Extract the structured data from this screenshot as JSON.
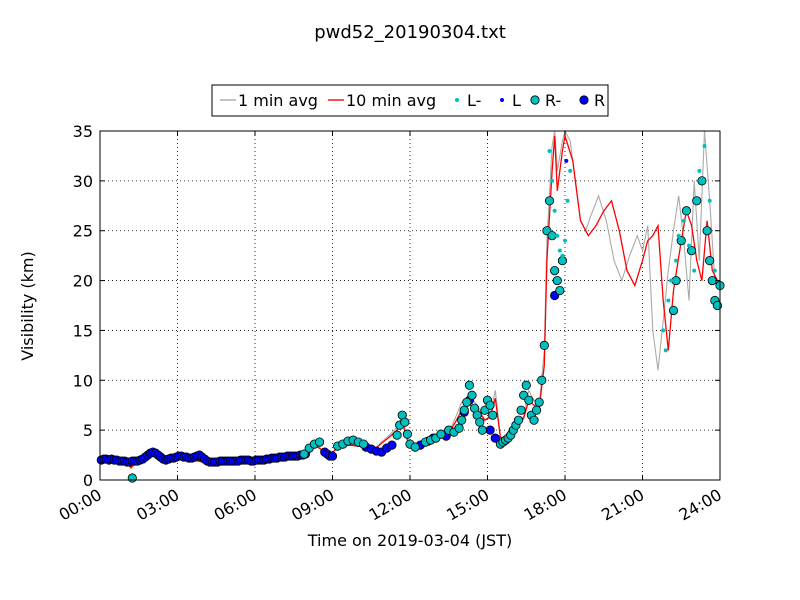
{
  "chart_data": {
    "type": "line",
    "title": "pwd52_20190304.txt",
    "xlabel": "Time on 2019-03-04 (JST)",
    "ylabel": "Visibility (km)",
    "xlim_hours": [
      0,
      24
    ],
    "ylim": [
      0,
      35
    ],
    "x_ticks": [
      {
        "hour": 0,
        "label": "00:00"
      },
      {
        "hour": 3,
        "label": "03:00"
      },
      {
        "hour": 6,
        "label": "06:00"
      },
      {
        "hour": 9,
        "label": "09:00"
      },
      {
        "hour": 12,
        "label": "12:00"
      },
      {
        "hour": 15,
        "label": "15:00"
      },
      {
        "hour": 18,
        "label": "18:00"
      },
      {
        "hour": 21,
        "label": "21:00"
      },
      {
        "hour": 24,
        "label": "24:00"
      }
    ],
    "y_ticks": [
      0,
      5,
      10,
      15,
      20,
      25,
      30,
      35
    ],
    "grid": true,
    "legend_position": "top-center, above the plot",
    "legend": [
      {
        "label": "1 min avg",
        "kind": "line",
        "color": "#aaaaaa"
      },
      {
        "label": "10 min avg",
        "kind": "line",
        "color": "#ff0000"
      },
      {
        "label": "L-",
        "kind": "small-dot",
        "color": "#00bfbf"
      },
      {
        "label": "L",
        "kind": "small-dot",
        "color": "#0000ff"
      },
      {
        "label": "R-",
        "kind": "big-dot",
        "color": "#00bfbf"
      },
      {
        "label": "R",
        "kind": "big-dot",
        "color": "#0000ff"
      }
    ],
    "series": [
      {
        "name": "1 min avg",
        "color": "#aaaaaa",
        "x_hours": [
          0,
          0.5,
          1.0,
          1.3,
          1.5,
          1.7,
          2.0,
          2.3,
          2.6,
          3.0,
          3.3,
          3.6,
          4.0,
          4.5,
          5.0,
          5.5,
          6.0,
          6.5,
          7.0,
          7.5,
          8.0,
          8.3,
          8.6,
          8.9,
          9.2,
          9.6,
          10.0,
          10.3,
          10.6,
          10.9,
          11.2,
          11.5,
          11.7,
          11.9,
          12.1,
          12.4,
          12.7,
          13.0,
          13.3,
          13.6,
          13.8,
          14.0,
          14.3,
          14.6,
          14.9,
          15.1,
          15.3,
          15.5,
          15.8,
          16.1,
          16.4,
          16.6,
          16.8,
          17.0,
          17.2,
          17.3,
          17.5,
          17.6,
          17.7,
          17.9,
          18.0,
          18.2,
          18.4,
          18.6,
          18.8,
          19.0,
          19.3,
          19.6,
          19.9,
          20.2,
          20.5,
          20.8,
          21.0,
          21.2,
          21.4,
          21.6,
          21.8,
          22.0,
          22.2,
          22.4,
          22.6,
          22.8,
          23.0,
          23.2,
          23.4,
          23.6,
          23.8,
          24.0
        ],
        "values": [
          2.0,
          2.1,
          1.9,
          1.8,
          2.0,
          2.2,
          2.7,
          2.3,
          2.2,
          2.3,
          2.4,
          2.0,
          1.8,
          1.9,
          1.9,
          2.0,
          2.0,
          2.2,
          2.3,
          2.4,
          3.1,
          3.8,
          3.0,
          2.5,
          3.3,
          3.5,
          3.4,
          3.3,
          3.0,
          3.8,
          4.5,
          5.3,
          6.4,
          4.2,
          3.3,
          3.8,
          4.0,
          4.5,
          5.0,
          5.3,
          6.5,
          7.8,
          8.5,
          7.5,
          6.0,
          6.5,
          9.0,
          4.2,
          3.8,
          5.0,
          6.5,
          9.0,
          8.0,
          7.5,
          13.0,
          24.0,
          33.5,
          35.0,
          31.0,
          34.0,
          35.0,
          34.0,
          30.0,
          26.0,
          25.0,
          26.5,
          28.5,
          26.0,
          22.0,
          20.0,
          22.5,
          24.5,
          23.0,
          25.5,
          15.0,
          11.0,
          16.0,
          21.0,
          25.0,
          28.5,
          24.0,
          18.0,
          30.0,
          22.0,
          35.0,
          28.0,
          20.0,
          19.0
        ]
      },
      {
        "name": "10 min avg",
        "color": "#ff0000",
        "x_hours": [
          0,
          0.5,
          1.0,
          1.2,
          1.4,
          1.6,
          2.0,
          2.3,
          2.6,
          3.0,
          3.3,
          3.6,
          4.0,
          4.5,
          5.0,
          5.5,
          6.0,
          6.5,
          7.0,
          7.5,
          8.0,
          8.3,
          8.6,
          8.9,
          9.2,
          9.6,
          10.0,
          10.3,
          10.6,
          10.9,
          11.2,
          11.5,
          11.7,
          11.9,
          12.1,
          12.4,
          12.7,
          13.0,
          13.3,
          13.6,
          13.8,
          14.0,
          14.3,
          14.6,
          14.9,
          15.1,
          15.3,
          15.5,
          15.8,
          16.1,
          16.4,
          16.6,
          16.8,
          17.0,
          17.2,
          17.3,
          17.5,
          17.6,
          17.7,
          17.9,
          18.0,
          18.3,
          18.6,
          18.9,
          19.2,
          19.5,
          19.8,
          20.1,
          20.4,
          20.7,
          21.0,
          21.2,
          21.4,
          21.6,
          21.8,
          22.0,
          22.2,
          22.5,
          22.7,
          22.9,
          23.1,
          23.3,
          23.5,
          23.7,
          24.0
        ],
        "values": [
          2.0,
          2.0,
          1.9,
          1.2,
          1.8,
          2.0,
          2.6,
          2.3,
          2.2,
          2.3,
          2.3,
          2.0,
          1.8,
          1.9,
          1.9,
          2.0,
          2.0,
          2.2,
          2.3,
          2.4,
          3.0,
          3.5,
          3.0,
          2.6,
          3.2,
          3.5,
          3.4,
          3.3,
          3.0,
          3.7,
          4.3,
          5.0,
          5.8,
          4.0,
          3.4,
          3.8,
          4.0,
          4.4,
          4.8,
          5.1,
          6.0,
          7.0,
          7.6,
          7.0,
          6.0,
          6.3,
          8.2,
          4.3,
          4.0,
          5.0,
          6.2,
          8.0,
          7.5,
          7.2,
          11.5,
          22.0,
          31.0,
          34.5,
          29.0,
          33.0,
          34.5,
          32.0,
          26.0,
          24.5,
          25.5,
          27.0,
          28.0,
          25.0,
          21.0,
          19.5,
          22.0,
          24.0,
          24.5,
          25.5,
          18.0,
          13.0,
          19.0,
          24.0,
          27.0,
          25.5,
          22.0,
          20.0,
          26.0,
          21.0,
          19.5
        ]
      },
      {
        "name": "R",
        "color": "#0000ff",
        "marker": "big-dot",
        "x_hours": [
          0.05,
          0.15,
          0.25,
          0.35,
          0.45,
          0.55,
          0.65,
          0.75,
          0.85,
          0.95,
          1.05,
          1.15,
          1.25,
          1.35,
          1.45,
          1.55,
          1.65,
          1.75,
          1.85,
          1.95,
          2.05,
          2.15,
          2.25,
          2.35,
          2.45,
          2.55,
          2.65,
          2.75,
          2.85,
          2.95,
          3.05,
          3.15,
          3.25,
          3.35,
          3.45,
          3.55,
          3.65,
          3.75,
          3.85,
          3.95,
          4.05,
          4.15,
          4.25,
          4.35,
          4.45,
          4.55,
          4.65,
          4.75,
          4.85,
          4.95,
          5.05,
          5.15,
          5.25,
          5.35,
          5.45,
          5.55,
          5.65,
          5.75,
          5.85,
          5.95,
          6.05,
          6.15,
          6.25,
          6.35,
          6.45,
          6.55,
          6.65,
          6.75,
          6.85,
          6.95,
          7.05,
          7.15,
          7.25,
          7.35,
          7.45,
          7.55,
          7.65,
          7.75,
          7.85,
          7.95,
          8.7,
          8.8,
          8.9,
          9.0,
          10.3,
          10.5,
          10.7,
          10.9,
          11.1,
          11.3,
          12.4,
          12.7,
          12.9,
          13.4,
          14.1,
          14.3,
          15.1,
          15.3,
          17.6
        ],
        "values": [
          2.0,
          2.1,
          2.1,
          2.0,
          2.1,
          2.0,
          2.0,
          1.9,
          1.9,
          1.9,
          1.8,
          1.8,
          1.9,
          1.9,
          1.9,
          2.0,
          2.1,
          2.3,
          2.5,
          2.7,
          2.8,
          2.7,
          2.5,
          2.3,
          2.1,
          2.0,
          2.1,
          2.2,
          2.2,
          2.3,
          2.4,
          2.4,
          2.3,
          2.3,
          2.2,
          2.2,
          2.3,
          2.4,
          2.5,
          2.3,
          2.1,
          1.9,
          1.8,
          1.8,
          1.8,
          1.8,
          1.9,
          1.9,
          1.9,
          1.9,
          1.9,
          1.9,
          1.9,
          1.9,
          2.0,
          2.0,
          2.0,
          2.0,
          1.9,
          1.9,
          2.0,
          2.0,
          2.0,
          2.0,
          2.1,
          2.1,
          2.2,
          2.2,
          2.2,
          2.3,
          2.3,
          2.3,
          2.4,
          2.4,
          2.4,
          2.4,
          2.4,
          2.5,
          2.5,
          2.6,
          2.8,
          2.6,
          2.4,
          2.4,
          3.3,
          3.1,
          2.9,
          2.8,
          3.2,
          3.5,
          3.5,
          3.9,
          4.2,
          4.4,
          6.8,
          8.0,
          5.0,
          4.2,
          18.5
        ]
      },
      {
        "name": "R-",
        "color": "#00bfbf",
        "marker": "big-dot",
        "x_hours": [
          1.25,
          7.9,
          8.1,
          8.3,
          8.5,
          9.2,
          9.4,
          9.6,
          9.8,
          10.0,
          10.2,
          11.5,
          11.6,
          11.7,
          11.8,
          11.9,
          12.0,
          12.2,
          12.6,
          12.8,
          13.0,
          13.2,
          13.5,
          13.7,
          13.9,
          14.0,
          14.1,
          14.2,
          14.3,
          14.4,
          14.5,
          14.6,
          14.7,
          14.8,
          14.9,
          15.0,
          15.1,
          15.2,
          15.5,
          15.6,
          15.7,
          15.8,
          15.9,
          16.0,
          16.1,
          16.2,
          16.3,
          16.4,
          16.5,
          16.6,
          16.7,
          16.8,
          16.9,
          17.0,
          17.1,
          17.2,
          17.3,
          17.4,
          17.5,
          17.6,
          17.7,
          17.8,
          17.9,
          22.2,
          22.3,
          22.5,
          22.7,
          22.9,
          23.1,
          23.3,
          23.5,
          23.6,
          23.7,
          23.8,
          23.9,
          24.0
        ],
        "values": [
          0.2,
          2.6,
          3.2,
          3.6,
          3.8,
          3.4,
          3.6,
          3.9,
          4.0,
          3.8,
          3.6,
          4.5,
          5.5,
          6.5,
          5.8,
          4.6,
          3.6,
          3.3,
          3.8,
          4.0,
          4.2,
          4.6,
          5.0,
          4.8,
          5.2,
          6.0,
          7.0,
          7.8,
          9.5,
          8.5,
          7.2,
          6.5,
          5.8,
          5.0,
          7.0,
          8.0,
          7.5,
          6.5,
          3.6,
          3.8,
          4.0,
          4.2,
          4.5,
          5.0,
          5.5,
          6.0,
          7.0,
          8.5,
          9.5,
          8.0,
          6.5,
          6.0,
          7.0,
          7.8,
          10.0,
          13.5,
          25.0,
          28.0,
          24.5,
          21.0,
          20.0,
          19.0,
          22.0,
          17.0,
          20.0,
          24.0,
          27.0,
          23.0,
          28.0,
          30.0,
          25.0,
          22.0,
          20.0,
          18.0,
          17.5,
          19.5
        ]
      },
      {
        "name": "L-",
        "color": "#00bfbf",
        "marker": "small-dot",
        "x_hours": [
          17.4,
          17.5,
          17.6,
          17.7,
          17.8,
          17.9,
          18.0,
          18.1,
          18.2,
          21.8,
          21.9,
          22.0,
          22.1,
          22.3,
          22.4,
          22.6,
          22.8,
          23.0,
          23.2,
          23.4,
          23.6,
          23.8
        ],
        "values": [
          33.0,
          30.0,
          27.0,
          24.5,
          23.0,
          22.5,
          24.0,
          28.0,
          31.0,
          15.0,
          13.0,
          18.0,
          20.0,
          22.0,
          24.5,
          26.0,
          23.5,
          21.0,
          31.0,
          33.5,
          28.0,
          21.0
        ]
      },
      {
        "name": "L",
        "color": "#0000ff",
        "marker": "small-dot",
        "x_hours": [
          18.05
        ],
        "values": [
          32.0
        ]
      }
    ]
  }
}
